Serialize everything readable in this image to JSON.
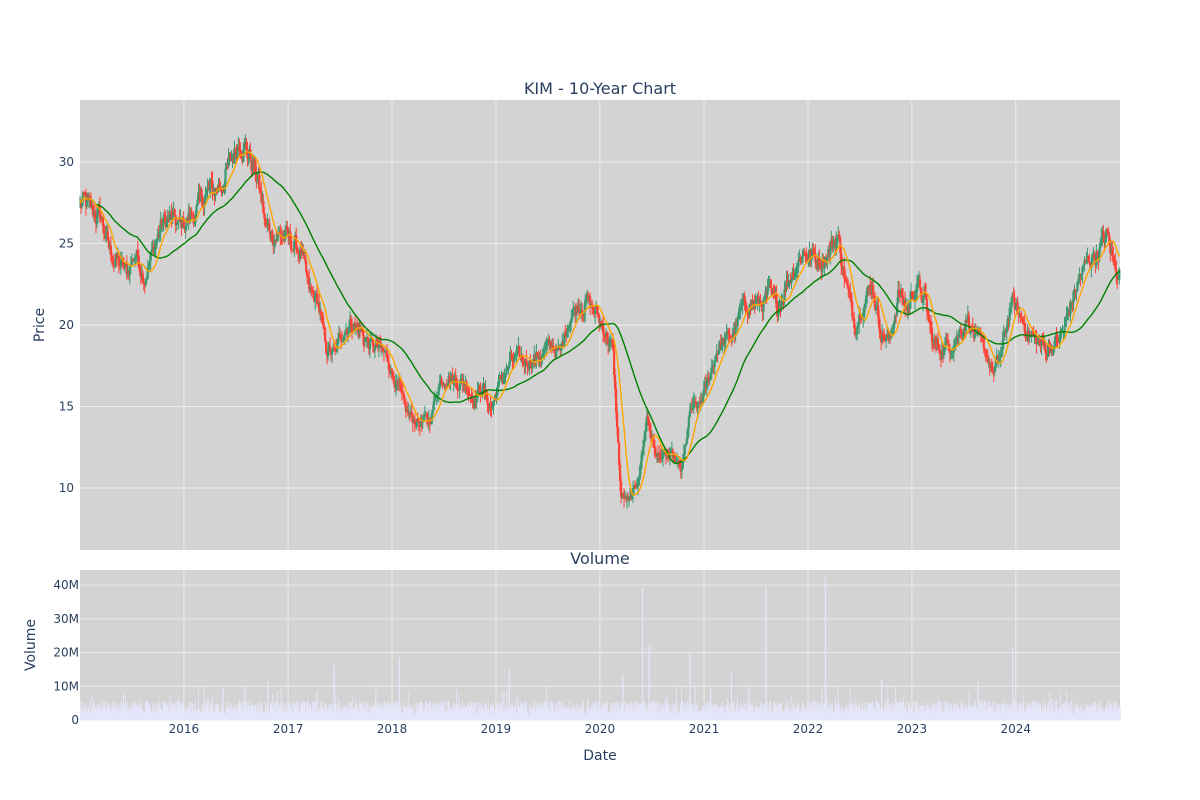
{
  "chart_data": [
    {
      "type": "candlestick",
      "title": "KIM - 10-Year Chart",
      "ylabel": "Price",
      "ylim": [
        6.2,
        33.8
      ],
      "yticks": [
        "10",
        "15",
        "20",
        "25",
        "30"
      ],
      "ytick_values": [
        10,
        15,
        20,
        25,
        30
      ],
      "x_range": [
        "2015-01-01",
        "2025-01-01"
      ],
      "grid": true,
      "colors": {
        "increasing": "#3d9970",
        "decreasing": "#ff4136",
        "ma_short": "#ffa500",
        "ma_long": "#008000",
        "plot_bg": "#d3d3d3"
      },
      "close_monthly": [
        [
          "2015-01",
          27.5
        ],
        [
          "2015-02",
          26.8
        ],
        [
          "2015-03",
          26.6
        ],
        [
          "2015-04",
          24.5
        ],
        [
          "2015-05",
          23.8
        ],
        [
          "2015-06",
          23.2
        ],
        [
          "2015-07",
          24.5
        ],
        [
          "2015-08",
          23.0
        ],
        [
          "2015-09",
          24.5
        ],
        [
          "2015-10",
          26.2
        ],
        [
          "2015-11",
          26.5
        ],
        [
          "2015-12",
          26.0
        ],
        [
          "2016-01",
          26.5
        ],
        [
          "2016-02",
          27.0
        ],
        [
          "2016-03",
          28.0
        ],
        [
          "2016-04",
          28.2
        ],
        [
          "2016-05",
          28.8
        ],
        [
          "2016-06",
          30.0
        ],
        [
          "2016-07",
          31.5
        ],
        [
          "2016-08",
          30.5
        ],
        [
          "2016-09",
          29.0
        ],
        [
          "2016-10",
          26.0
        ],
        [
          "2016-11",
          25.5
        ],
        [
          "2016-12",
          25.5
        ],
        [
          "2017-01",
          25.0
        ],
        [
          "2017-02",
          24.5
        ],
        [
          "2017-03",
          22.0
        ],
        [
          "2017-04",
          21.5
        ],
        [
          "2017-05",
          18.5
        ],
        [
          "2017-06",
          18.2
        ],
        [
          "2017-07",
          19.8
        ],
        [
          "2017-08",
          20.2
        ],
        [
          "2017-09",
          19.5
        ],
        [
          "2017-10",
          18.8
        ],
        [
          "2017-11",
          18.5
        ],
        [
          "2017-12",
          18.0
        ],
        [
          "2018-01",
          16.5
        ],
        [
          "2018-02",
          14.8
        ],
        [
          "2018-03",
          14.2
        ],
        [
          "2018-04",
          14.0
        ],
        [
          "2018-05",
          14.2
        ],
        [
          "2018-06",
          16.5
        ],
        [
          "2018-07",
          17.0
        ],
        [
          "2018-08",
          16.5
        ],
        [
          "2018-09",
          16.5
        ],
        [
          "2018-10",
          15.5
        ],
        [
          "2018-11",
          16.2
        ],
        [
          "2018-12",
          14.8
        ],
        [
          "2019-01",
          16.5
        ],
        [
          "2019-02",
          17.5
        ],
        [
          "2019-03",
          18.0
        ],
        [
          "2019-04",
          17.8
        ],
        [
          "2019-05",
          18.0
        ],
        [
          "2019-06",
          18.2
        ],
        [
          "2019-07",
          18.8
        ],
        [
          "2019-08",
          18.2
        ],
        [
          "2019-09",
          20.5
        ],
        [
          "2019-10",
          21.2
        ],
        [
          "2019-11",
          21.5
        ],
        [
          "2019-12",
          20.8
        ],
        [
          "2020-01",
          19.8
        ],
        [
          "2020-02",
          18.5
        ],
        [
          "2020-03",
          9.5
        ],
        [
          "2020-04",
          9.2
        ],
        [
          "2020-05",
          10.5
        ],
        [
          "2020-06",
          14.5
        ],
        [
          "2020-07",
          12.0
        ],
        [
          "2020-08",
          12.0
        ],
        [
          "2020-09",
          11.8
        ],
        [
          "2020-10",
          11.0
        ],
        [
          "2020-11",
          14.8
        ],
        [
          "2020-12",
          15.0
        ],
        [
          "2021-01",
          16.5
        ],
        [
          "2021-02",
          18.5
        ],
        [
          "2021-03",
          19.0
        ],
        [
          "2021-04",
          19.5
        ],
        [
          "2021-05",
          21.0
        ],
        [
          "2021-06",
          21.5
        ],
        [
          "2021-07",
          21.2
        ],
        [
          "2021-08",
          21.8
        ],
        [
          "2021-09",
          21.0
        ],
        [
          "2021-10",
          22.5
        ],
        [
          "2021-11",
          23.5
        ],
        [
          "2021-12",
          24.5
        ],
        [
          "2022-01",
          24.2
        ],
        [
          "2022-02",
          24.0
        ],
        [
          "2022-03",
          24.5
        ],
        [
          "2022-04",
          25.5
        ],
        [
          "2022-05",
          22.5
        ],
        [
          "2022-06",
          20.0
        ],
        [
          "2022-07",
          21.5
        ],
        [
          "2022-08",
          22.5
        ],
        [
          "2022-09",
          19.5
        ],
        [
          "2022-10",
          19.0
        ],
        [
          "2022-11",
          22.0
        ],
        [
          "2022-12",
          21.0
        ],
        [
          "2023-01",
          22.5
        ],
        [
          "2023-02",
          21.5
        ],
        [
          "2023-03",
          19.0
        ],
        [
          "2023-04",
          18.5
        ],
        [
          "2023-05",
          18.8
        ],
        [
          "2023-06",
          19.5
        ],
        [
          "2023-07",
          20.5
        ],
        [
          "2023-08",
          19.0
        ],
        [
          "2023-09",
          18.5
        ],
        [
          "2023-10",
          17.0
        ],
        [
          "2023-11",
          18.5
        ],
        [
          "2023-12",
          21.5
        ],
        [
          "2024-01",
          20.5
        ],
        [
          "2024-02",
          19.5
        ],
        [
          "2024-03",
          19.0
        ],
        [
          "2024-04",
          18.5
        ],
        [
          "2024-05",
          18.8
        ],
        [
          "2024-06",
          19.5
        ],
        [
          "2024-07",
          21.5
        ],
        [
          "2024-08",
          23.0
        ],
        [
          "2024-09",
          24.0
        ],
        [
          "2024-10",
          24.5
        ],
        [
          "2024-11",
          25.5
        ],
        [
          "2024-12",
          23.5
        ]
      ],
      "series": [
        {
          "values_ref": "close_monthly"
        }
      ]
    },
    {
      "type": "bar",
      "title": "Volume",
      "ylabel": "Volume",
      "xlabel": "Date",
      "ylim": [
        0,
        44500000
      ],
      "yticks": [
        "0",
        "10M",
        "20M",
        "30M",
        "40M"
      ],
      "ytick_values": [
        0,
        10000000,
        20000000,
        30000000,
        40000000
      ],
      "xticks": [
        "2016",
        "2017",
        "2018",
        "2019",
        "2020",
        "2021",
        "2022",
        "2023",
        "2024"
      ],
      "xtick_dates": [
        "2016-01-01",
        "2017-01-01",
        "2018-01-01",
        "2019-01-01",
        "2020-01-01",
        "2021-01-01",
        "2022-01-01",
        "2023-01-01",
        "2024-01-01"
      ],
      "bar_color": "#e6e6fa",
      "baseline_volume": 4000000,
      "spikes": [
        [
          "2016-05-15",
          9500000
        ],
        [
          "2016-10-20",
          11500000
        ],
        [
          "2017-06-10",
          16500000
        ],
        [
          "2018-01-25",
          18500000
        ],
        [
          "2019-02-15",
          15000000
        ],
        [
          "2020-03-20",
          13500000
        ],
        [
          "2020-05-28",
          39000000
        ],
        [
          "2020-06-20",
          22000000
        ],
        [
          "2020-11-10",
          20000000
        ],
        [
          "2021-04-05",
          14000000
        ],
        [
          "2021-08-05",
          39500000
        ],
        [
          "2022-03-01",
          42500000
        ],
        [
          "2022-09-15",
          12000000
        ],
        [
          "2023-08-20",
          11500000
        ],
        [
          "2023-12-20",
          21500000
        ]
      ]
    }
  ]
}
